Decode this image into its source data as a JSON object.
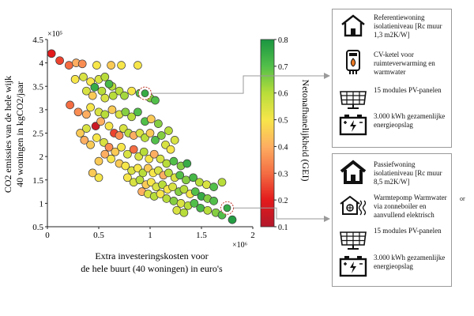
{
  "chart_data": {
    "type": "scatter",
    "title": "",
    "xlabel_line1": "Extra investeringskosten voor",
    "xlabel_line2": "de hele buurt (40 woningen) in euro's",
    "ylabel_line1": "CO2 emissies van de hele wijk",
    "ylabel_line2": "40 woningen in kgCO2/jaar",
    "x_multiplier": "×10⁶",
    "y_multiplier": "×10⁵",
    "xlim": [
      0,
      2000000
    ],
    "ylim": [
      500000,
      4500000
    ],
    "x_ticks": [
      0,
      500000,
      1000000,
      1500000,
      2000000
    ],
    "x_tick_labels": [
      "0",
      "0.5",
      "1",
      "1.5",
      "2"
    ],
    "y_ticks": [
      500000,
      1000000,
      1500000,
      2000000,
      2500000,
      3000000,
      3500000,
      4000000,
      4500000
    ],
    "y_tick_labels": [
      "0.5",
      "1",
      "1.5",
      "2",
      "2.5",
      "3",
      "3.5",
      "4",
      "4.5"
    ],
    "grid": false,
    "colorbar": {
      "label": "Netonafhanelijkheid (GEI)",
      "range": [
        0.1,
        0.8
      ],
      "ticks": [
        "0.1",
        "0.2",
        "0.3",
        "0.4",
        "0.5",
        "0.6",
        "0.7",
        "0.8"
      ],
      "colors": [
        "#b2182b",
        "#e31a1c",
        "#f46d43",
        "#fdae61",
        "#f7e64a",
        "#b8dd3a",
        "#52bf4a",
        "#1a9641"
      ]
    },
    "highlighted_points": [
      {
        "x": 950000,
        "y": 3350000,
        "color": 0.75
      },
      {
        "x": 1750000,
        "y": 900000,
        "color": 0.75
      }
    ],
    "points": [
      {
        "x": 40000,
        "y": 4200000,
        "c": 0.2
      },
      {
        "x": 120000,
        "y": 4050000,
        "c": 0.25
      },
      {
        "x": 210000,
        "y": 3950000,
        "c": 0.3
      },
      {
        "x": 280000,
        "y": 4000000,
        "c": 0.4
      },
      {
        "x": 340000,
        "y": 3980000,
        "c": 0.35
      },
      {
        "x": 480000,
        "y": 3950000,
        "c": 0.5
      },
      {
        "x": 620000,
        "y": 3950000,
        "c": 0.45
      },
      {
        "x": 720000,
        "y": 3950000,
        "c": 0.5
      },
      {
        "x": 880000,
        "y": 3950000,
        "c": 0.5
      },
      {
        "x": 270000,
        "y": 3650000,
        "c": 0.5
      },
      {
        "x": 350000,
        "y": 3700000,
        "c": 0.55
      },
      {
        "x": 420000,
        "y": 3600000,
        "c": 0.5
      },
      {
        "x": 500000,
        "y": 3650000,
        "c": 0.55
      },
      {
        "x": 560000,
        "y": 3700000,
        "c": 0.6
      },
      {
        "x": 630000,
        "y": 3500000,
        "c": 0.6
      },
      {
        "x": 700000,
        "y": 3400000,
        "c": 0.6
      },
      {
        "x": 750000,
        "y": 3300000,
        "c": 0.62
      },
      {
        "x": 820000,
        "y": 3400000,
        "c": 0.5
      },
      {
        "x": 900000,
        "y": 3350000,
        "c": 0.7
      },
      {
        "x": 1000000,
        "y": 3250000,
        "c": 0.65
      },
      {
        "x": 1050000,
        "y": 3200000,
        "c": 0.7
      },
      {
        "x": 460000,
        "y": 3480000,
        "c": 0.75
      },
      {
        "x": 530000,
        "y": 3400000,
        "c": 0.6
      },
      {
        "x": 600000,
        "y": 3550000,
        "c": 0.72
      },
      {
        "x": 380000,
        "y": 3400000,
        "c": 0.55
      },
      {
        "x": 440000,
        "y": 3300000,
        "c": 0.45
      },
      {
        "x": 640000,
        "y": 3300000,
        "c": 0.6
      },
      {
        "x": 560000,
        "y": 3250000,
        "c": 0.55
      },
      {
        "x": 220000,
        "y": 3100000,
        "c": 0.3
      },
      {
        "x": 300000,
        "y": 2950000,
        "c": 0.35
      },
      {
        "x": 380000,
        "y": 2900000,
        "c": 0.4
      },
      {
        "x": 420000,
        "y": 3050000,
        "c": 0.5
      },
      {
        "x": 500000,
        "y": 2950000,
        "c": 0.55
      },
      {
        "x": 560000,
        "y": 2900000,
        "c": 0.6
      },
      {
        "x": 630000,
        "y": 3000000,
        "c": 0.45
      },
      {
        "x": 700000,
        "y": 2900000,
        "c": 0.55
      },
      {
        "x": 760000,
        "y": 2950000,
        "c": 0.65
      },
      {
        "x": 820000,
        "y": 2850000,
        "c": 0.6
      },
      {
        "x": 880000,
        "y": 2950000,
        "c": 0.7
      },
      {
        "x": 950000,
        "y": 2750000,
        "c": 0.7
      },
      {
        "x": 1010000,
        "y": 2800000,
        "c": 0.45
      },
      {
        "x": 1080000,
        "y": 2700000,
        "c": 0.65
      },
      {
        "x": 470000,
        "y": 2650000,
        "c": 0.15
      },
      {
        "x": 520000,
        "y": 2750000,
        "c": 0.4
      },
      {
        "x": 600000,
        "y": 2650000,
        "c": 0.5
      },
      {
        "x": 650000,
        "y": 2500000,
        "c": 0.25
      },
      {
        "x": 700000,
        "y": 2450000,
        "c": 0.35
      },
      {
        "x": 740000,
        "y": 2600000,
        "c": 0.55
      },
      {
        "x": 790000,
        "y": 2500000,
        "c": 0.6
      },
      {
        "x": 840000,
        "y": 2450000,
        "c": 0.4
      },
      {
        "x": 900000,
        "y": 2500000,
        "c": 0.55
      },
      {
        "x": 950000,
        "y": 2400000,
        "c": 0.6
      },
      {
        "x": 1000000,
        "y": 2500000,
        "c": 0.45
      },
      {
        "x": 1050000,
        "y": 2350000,
        "c": 0.7
      },
      {
        "x": 1110000,
        "y": 2450000,
        "c": 0.65
      },
      {
        "x": 1150000,
        "y": 2250000,
        "c": 0.55
      },
      {
        "x": 1200000,
        "y": 2150000,
        "c": 0.5
      },
      {
        "x": 360000,
        "y": 2350000,
        "c": 0.4
      },
      {
        "x": 420000,
        "y": 2250000,
        "c": 0.45
      },
      {
        "x": 480000,
        "y": 2400000,
        "c": 0.5
      },
      {
        "x": 550000,
        "y": 2300000,
        "c": 0.55
      },
      {
        "x": 600000,
        "y": 2200000,
        "c": 0.35
      },
      {
        "x": 660000,
        "y": 2100000,
        "c": 0.45
      },
      {
        "x": 720000,
        "y": 2200000,
        "c": 0.5
      },
      {
        "x": 780000,
        "y": 2050000,
        "c": 0.55
      },
      {
        "x": 840000,
        "y": 2150000,
        "c": 0.3
      },
      {
        "x": 890000,
        "y": 2000000,
        "c": 0.55
      },
      {
        "x": 940000,
        "y": 2100000,
        "c": 0.6
      },
      {
        "x": 990000,
        "y": 1950000,
        "c": 0.5
      },
      {
        "x": 1040000,
        "y": 2050000,
        "c": 0.4
      },
      {
        "x": 1100000,
        "y": 1950000,
        "c": 0.55
      },
      {
        "x": 1160000,
        "y": 1850000,
        "c": 0.6
      },
      {
        "x": 1230000,
        "y": 1900000,
        "c": 0.7
      },
      {
        "x": 1300000,
        "y": 1800000,
        "c": 0.65
      },
      {
        "x": 1360000,
        "y": 1850000,
        "c": 0.75
      },
      {
        "x": 560000,
        "y": 2050000,
        "c": 0.4
      },
      {
        "x": 500000,
        "y": 1900000,
        "c": 0.45
      },
      {
        "x": 620000,
        "y": 1950000,
        "c": 0.5
      },
      {
        "x": 700000,
        "y": 1850000,
        "c": 0.45
      },
      {
        "x": 760000,
        "y": 1800000,
        "c": 0.5
      },
      {
        "x": 820000,
        "y": 1700000,
        "c": 0.55
      },
      {
        "x": 880000,
        "y": 1750000,
        "c": 0.5
      },
      {
        "x": 930000,
        "y": 1650000,
        "c": 0.6
      },
      {
        "x": 980000,
        "y": 1750000,
        "c": 0.45
      },
      {
        "x": 1030000,
        "y": 1650000,
        "c": 0.5
      },
      {
        "x": 1080000,
        "y": 1700000,
        "c": 0.55
      },
      {
        "x": 1130000,
        "y": 1600000,
        "c": 0.4
      },
      {
        "x": 1180000,
        "y": 1650000,
        "c": 0.6
      },
      {
        "x": 1240000,
        "y": 1550000,
        "c": 0.55
      },
      {
        "x": 1290000,
        "y": 1600000,
        "c": 0.7
      },
      {
        "x": 1350000,
        "y": 1500000,
        "c": 0.65
      },
      {
        "x": 1420000,
        "y": 1550000,
        "c": 0.72
      },
      {
        "x": 1480000,
        "y": 1450000,
        "c": 0.6
      },
      {
        "x": 1550000,
        "y": 1400000,
        "c": 0.55
      },
      {
        "x": 1620000,
        "y": 1350000,
        "c": 0.7
      },
      {
        "x": 1700000,
        "y": 1450000,
        "c": 0.6
      },
      {
        "x": 780000,
        "y": 1550000,
        "c": 0.5
      },
      {
        "x": 840000,
        "y": 1450000,
        "c": 0.55
      },
      {
        "x": 900000,
        "y": 1500000,
        "c": 0.6
      },
      {
        "x": 960000,
        "y": 1400000,
        "c": 0.45
      },
      {
        "x": 1010000,
        "y": 1450000,
        "c": 0.5
      },
      {
        "x": 1060000,
        "y": 1350000,
        "c": 0.55
      },
      {
        "x": 1120000,
        "y": 1400000,
        "c": 0.6
      },
      {
        "x": 1170000,
        "y": 1300000,
        "c": 0.5
      },
      {
        "x": 1220000,
        "y": 1350000,
        "c": 0.55
      },
      {
        "x": 1280000,
        "y": 1250000,
        "c": 0.65
      },
      {
        "x": 1330000,
        "y": 1300000,
        "c": 0.6
      },
      {
        "x": 1390000,
        "y": 1200000,
        "c": 0.5
      },
      {
        "x": 1440000,
        "y": 1250000,
        "c": 0.7
      },
      {
        "x": 1500000,
        "y": 1150000,
        "c": 0.75
      },
      {
        "x": 1560000,
        "y": 1100000,
        "c": 0.65
      },
      {
        "x": 1620000,
        "y": 1050000,
        "c": 0.7
      },
      {
        "x": 920000,
        "y": 1250000,
        "c": 0.4
      },
      {
        "x": 980000,
        "y": 1200000,
        "c": 0.55
      },
      {
        "x": 1040000,
        "y": 1150000,
        "c": 0.6
      },
      {
        "x": 1100000,
        "y": 1200000,
        "c": 0.5
      },
      {
        "x": 1160000,
        "y": 1100000,
        "c": 0.6
      },
      {
        "x": 1230000,
        "y": 1050000,
        "c": 0.65
      },
      {
        "x": 1300000,
        "y": 1000000,
        "c": 0.55
      },
      {
        "x": 1370000,
        "y": 950000,
        "c": 0.6
      },
      {
        "x": 1430000,
        "y": 1000000,
        "c": 0.7
      },
      {
        "x": 1490000,
        "y": 900000,
        "c": 0.72
      },
      {
        "x": 1560000,
        "y": 850000,
        "c": 0.6
      },
      {
        "x": 1640000,
        "y": 800000,
        "c": 0.65
      },
      {
        "x": 1800000,
        "y": 650000,
        "c": 0.78
      },
      {
        "x": 1700000,
        "y": 750000,
        "c": 0.7
      },
      {
        "x": 1260000,
        "y": 850000,
        "c": 0.55
      },
      {
        "x": 1330000,
        "y": 800000,
        "c": 0.6
      },
      {
        "x": 500000,
        "y": 1550000,
        "c": 0.5
      },
      {
        "x": 440000,
        "y": 1650000,
        "c": 0.45
      },
      {
        "x": 380000,
        "y": 2600000,
        "c": 0.55
      },
      {
        "x": 320000,
        "y": 2500000,
        "c": 0.45
      },
      {
        "x": 1180000,
        "y": 2550000,
        "c": 0.6
      },
      {
        "x": 1240000,
        "y": 2350000,
        "c": 0.55
      }
    ]
  },
  "panels": {
    "top": [
      {
        "icon": "house-icon",
        "text": "Referentiewoning isolatieniveau [Rc muur 1,3 m2K/W]"
      },
      {
        "icon": "boiler-icon",
        "text": "CV-ketel voor ruimteverwarming en warmwater"
      },
      {
        "icon": "solar-panel-icon",
        "text": "15 modules PV-panelen"
      },
      {
        "icon": "battery-icon",
        "text": "3.000 kWh gezamenlijke energieopslag"
      }
    ],
    "bottom": [
      {
        "icon": "house-bold-icon",
        "text": "Passiefwoning isolatieniveau [Rc muur 8,5 m2K/W]"
      },
      {
        "icon": "heat-pump-icon",
        "text": "Warmtepomp Warmwater via zonneboiler en aanvullend elektrisch"
      },
      {
        "icon": "solar-panel-icon",
        "text": "15 modules PV-panelen"
      },
      {
        "icon": "battery-icon",
        "text": "3.000 kWh gezamenlijke energieopslag"
      }
    ],
    "cutoff_text": "or"
  }
}
